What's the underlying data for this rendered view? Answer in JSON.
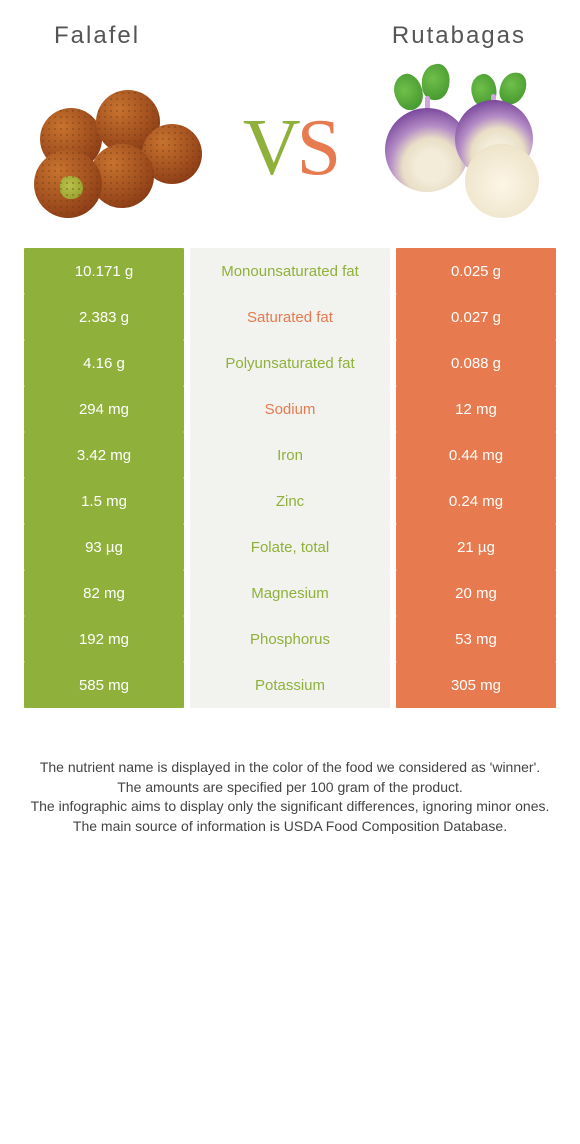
{
  "colors": {
    "left": "#8fb13b",
    "right": "#e77a4f",
    "label_bg": "#f2f2ef",
    "vs_v": "#8fb13b",
    "vs_s": "#e77a4f"
  },
  "header": {
    "left_title": "Falafel",
    "right_title": "Rutabagas",
    "vs_v": "V",
    "vs_s": "S"
  },
  "rows": [
    {
      "left": "10.171 g",
      "name": "Monounsaturated fat",
      "right": "0.025 g",
      "winner": "left"
    },
    {
      "left": "2.383 g",
      "name": "Saturated fat",
      "right": "0.027 g",
      "winner": "right"
    },
    {
      "left": "4.16 g",
      "name": "Polyunsaturated fat",
      "right": "0.088 g",
      "winner": "left"
    },
    {
      "left": "294 mg",
      "name": "Sodium",
      "right": "12 mg",
      "winner": "right"
    },
    {
      "left": "3.42 mg",
      "name": "Iron",
      "right": "0.44 mg",
      "winner": "left"
    },
    {
      "left": "1.5 mg",
      "name": "Zinc",
      "right": "0.24 mg",
      "winner": "left"
    },
    {
      "left": "93 µg",
      "name": "Folate, total",
      "right": "21 µg",
      "winner": "left"
    },
    {
      "left": "82 mg",
      "name": "Magnesium",
      "right": "20 mg",
      "winner": "left"
    },
    {
      "left": "192 mg",
      "name": "Phosphorus",
      "right": "53 mg",
      "winner": "left"
    },
    {
      "left": "585 mg",
      "name": "Potassium",
      "right": "305 mg",
      "winner": "left"
    }
  ],
  "footnotes": [
    "The nutrient name is displayed in the color of the food we considered as 'winner'.",
    "The amounts are specified per 100 gram of the product.",
    "The infographic aims to display only the significant differences, ignoring minor ones.",
    "The main source of information is USDA Food Composition Database."
  ]
}
